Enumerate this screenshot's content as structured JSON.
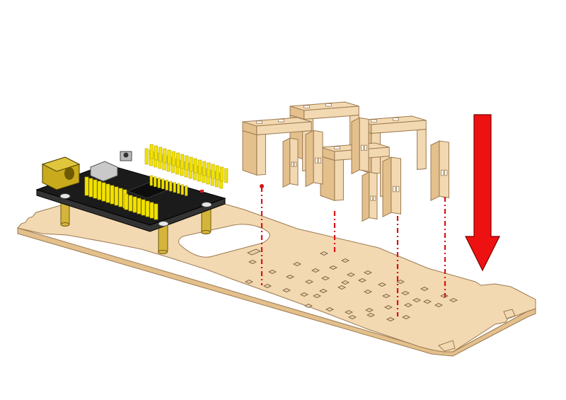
{
  "scene": {
    "description_free": true,
    "colors": {
      "background": "#ffffff",
      "wood": "#f3d9b1",
      "wood_edge": "#e3c08c",
      "wood_outline": "#9c7a52",
      "hole": "#e9cfa8",
      "board": "#1b1b1b",
      "header_pin": "#f2e200",
      "header_pin_dark": "#b8a800",
      "dc_jack": "#c8aa1c",
      "standoff": "#d4b43a",
      "guide_line": "#d61414",
      "arrow": "#ee1111",
      "arrow_outline": "#7a0000"
    },
    "parts": {
      "base_plate": "wooden-base-plate",
      "controller": "controller-board",
      "brackets": [
        "wooden-bracket",
        "wooden-bracket",
        "wooden-bracket",
        "wooden-bracket",
        "wooden-bracket",
        "wooden-bracket"
      ],
      "arrow_icon": "arrow-down-icon"
    }
  }
}
